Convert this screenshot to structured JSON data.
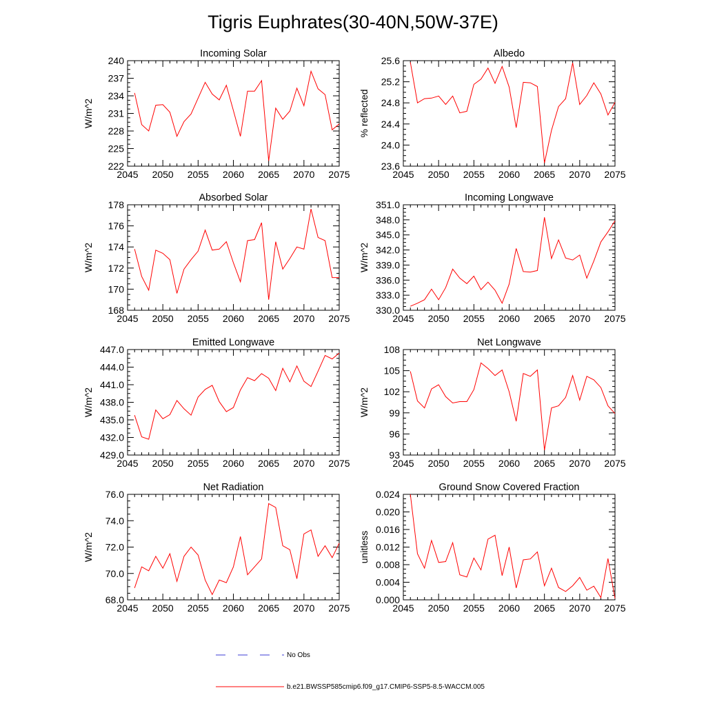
{
  "figure": {
    "title": "Tigris Euphrates(30-40N,50W-37E)"
  },
  "legend": {
    "obs_label": "No Obs",
    "model_label": "b.e21.BWSSP585cmip6.f09_g17.CMIP6-SSP5-8.5-WACCM.005",
    "obs_color": "#3b3bd6",
    "model_color": "#ff0000"
  },
  "chart_data": [
    {
      "type": "line",
      "title": "Incoming Solar",
      "ylabel": "W/m^2",
      "xlim": [
        2045,
        2075
      ],
      "ylim": [
        222,
        240
      ],
      "xticks": [
        2045,
        2050,
        2055,
        2060,
        2065,
        2070,
        2075
      ],
      "yticks": [
        222,
        225,
        228,
        231,
        234,
        237,
        240
      ],
      "ytick_labels": [
        "222",
        "225",
        "228",
        "231",
        "234",
        "237",
        "240"
      ],
      "x": [
        2046,
        2047,
        2048,
        2049,
        2050,
        2051,
        2052,
        2053,
        2054,
        2055,
        2056,
        2057,
        2058,
        2059,
        2060,
        2061,
        2062,
        2063,
        2064,
        2065,
        2066,
        2067,
        2068,
        2069,
        2070,
        2071,
        2072,
        2073,
        2074,
        2075
      ],
      "series": [
        {
          "values": [
            234.5,
            229.1,
            228.0,
            232.4,
            232.5,
            231.2,
            227.1,
            229.6,
            230.9,
            233.6,
            236.3,
            234.3,
            233.3,
            235.8,
            231.5,
            227.1,
            234.8,
            234.8,
            236.6,
            222.9,
            231.9,
            230.0,
            231.4,
            235.3,
            232.3,
            238.2,
            235.2,
            234.2,
            228.2,
            229.2
          ]
        }
      ]
    },
    {
      "type": "line",
      "title": "Albedo",
      "ylabel": "% reflected",
      "xlim": [
        2045,
        2075
      ],
      "ylim": [
        23.6,
        25.6
      ],
      "xticks": [
        2045,
        2050,
        2055,
        2060,
        2065,
        2070,
        2075
      ],
      "yticks": [
        23.6,
        24.0,
        24.4,
        24.8,
        25.2,
        25.6
      ],
      "ytick_labels": [
        "23.6",
        "24.0",
        "24.4",
        "24.8",
        "25.2",
        "25.6"
      ],
      "x": [
        2046,
        2047,
        2048,
        2049,
        2050,
        2051,
        2052,
        2053,
        2054,
        2055,
        2056,
        2057,
        2058,
        2059,
        2060,
        2061,
        2062,
        2063,
        2064,
        2065,
        2066,
        2067,
        2068,
        2069,
        2070,
        2071,
        2072,
        2073,
        2074,
        2075
      ],
      "series": [
        {
          "values": [
            25.57,
            24.8,
            24.88,
            24.89,
            24.93,
            24.77,
            24.93,
            24.61,
            24.64,
            25.15,
            25.25,
            25.46,
            25.17,
            25.49,
            25.1,
            24.33,
            25.19,
            25.18,
            25.11,
            23.66,
            24.28,
            24.73,
            24.88,
            25.56,
            24.77,
            24.94,
            25.18,
            24.97,
            24.57,
            24.81
          ]
        }
      ]
    },
    {
      "type": "line",
      "title": "Absorbed Solar",
      "ylabel": "W/m^2",
      "xlim": [
        2045,
        2075
      ],
      "ylim": [
        168,
        178
      ],
      "xticks": [
        2045,
        2050,
        2055,
        2060,
        2065,
        2070,
        2075
      ],
      "yticks": [
        168,
        170,
        172,
        174,
        176,
        178
      ],
      "ytick_labels": [
        "168",
        "170",
        "172",
        "174",
        "176",
        "178"
      ],
      "x": [
        2046,
        2047,
        2048,
        2049,
        2050,
        2051,
        2052,
        2053,
        2054,
        2055,
        2056,
        2057,
        2058,
        2059,
        2060,
        2061,
        2062,
        2063,
        2064,
        2065,
        2066,
        2067,
        2068,
        2069,
        2070,
        2071,
        2072,
        2073,
        2074,
        2075
      ],
      "series": [
        {
          "values": [
            173.8,
            171.2,
            169.9,
            173.7,
            173.4,
            172.8,
            169.6,
            171.9,
            172.8,
            173.6,
            175.6,
            173.7,
            173.8,
            174.5,
            172.5,
            170.7,
            174.6,
            174.7,
            176.3,
            169.0,
            174.5,
            171.9,
            172.9,
            174.0,
            173.8,
            177.6,
            174.9,
            174.6,
            171.1,
            171.1
          ]
        }
      ]
    },
    {
      "type": "line",
      "title": "Incoming Longwave",
      "ylabel": "W/m^2",
      "xlim": [
        2045,
        2075
      ],
      "ylim": [
        330,
        351
      ],
      "xticks": [
        2045,
        2050,
        2055,
        2060,
        2065,
        2070,
        2075
      ],
      "yticks": [
        330,
        333,
        336,
        339,
        342,
        345,
        348,
        351
      ],
      "ytick_labels": [
        "330.0",
        "333.0",
        "336.0",
        "339.0",
        "342.0",
        "345.0",
        "348.0",
        "351.0"
      ],
      "x": [
        2046,
        2047,
        2048,
        2049,
        2050,
        2051,
        2052,
        2053,
        2054,
        2055,
        2056,
        2057,
        2058,
        2059,
        2060,
        2061,
        2062,
        2063,
        2064,
        2065,
        2066,
        2067,
        2068,
        2069,
        2070,
        2071,
        2072,
        2073,
        2074,
        2075
      ],
      "series": [
        {
          "values": [
            330.8,
            331.4,
            332.1,
            334.2,
            332.1,
            334.5,
            338.2,
            336.4,
            335.3,
            336.8,
            334.1,
            335.6,
            334.0,
            331.4,
            335.2,
            342.3,
            337.7,
            337.6,
            337.9,
            348.5,
            340.3,
            344.0,
            340.4,
            340.0,
            341.0,
            336.4,
            339.8,
            343.6,
            345.6,
            347.8
          ]
        }
      ]
    },
    {
      "type": "line",
      "title": "Emitted Longwave",
      "ylabel": "W/m^2",
      "xlim": [
        2045,
        2075
      ],
      "ylim": [
        429,
        447
      ],
      "xticks": [
        2045,
        2050,
        2055,
        2060,
        2065,
        2070,
        2075
      ],
      "yticks": [
        429,
        432,
        435,
        438,
        441,
        444,
        447
      ],
      "ytick_labels": [
        "429.0",
        "432.0",
        "435.0",
        "438.0",
        "441.0",
        "444.0",
        "447.0"
      ],
      "x": [
        2046,
        2047,
        2048,
        2049,
        2050,
        2051,
        2052,
        2053,
        2054,
        2055,
        2056,
        2057,
        2058,
        2059,
        2060,
        2061,
        2062,
        2063,
        2064,
        2065,
        2066,
        2067,
        2068,
        2069,
        2070,
        2071,
        2072,
        2073,
        2074,
        2075
      ],
      "series": [
        {
          "values": [
            435.8,
            432.1,
            431.7,
            436.7,
            435.2,
            435.9,
            438.3,
            436.9,
            435.8,
            438.9,
            440.2,
            440.9,
            438.1,
            436.4,
            437.1,
            440.1,
            442.2,
            441.7,
            442.9,
            442.1,
            440.0,
            443.8,
            441.5,
            444.2,
            441.6,
            440.7,
            443.3,
            446.0,
            445.4,
            446.4
          ]
        }
      ]
    },
    {
      "type": "line",
      "title": "Net Longwave",
      "ylabel": "W/m^2",
      "xlim": [
        2045,
        2075
      ],
      "ylim": [
        93,
        108
      ],
      "xticks": [
        2045,
        2050,
        2055,
        2060,
        2065,
        2070,
        2075
      ],
      "yticks": [
        93,
        96,
        99,
        102,
        105,
        108
      ],
      "ytick_labels": [
        "93",
        "96",
        "99",
        "102",
        "105",
        "108"
      ],
      "x": [
        2046,
        2047,
        2048,
        2049,
        2050,
        2051,
        2052,
        2053,
        2054,
        2055,
        2056,
        2057,
        2058,
        2059,
        2060,
        2061,
        2062,
        2063,
        2064,
        2065,
        2066,
        2067,
        2068,
        2069,
        2070,
        2071,
        2072,
        2073,
        2074,
        2075
      ],
      "series": [
        {
          "values": [
            104.9,
            100.7,
            99.7,
            102.4,
            103.0,
            101.3,
            100.4,
            100.6,
            100.6,
            102.3,
            106.1,
            105.3,
            104.3,
            105.1,
            102.0,
            97.8,
            104.6,
            104.2,
            105.1,
            93.7,
            99.7,
            100.0,
            101.2,
            104.3,
            100.8,
            104.2,
            103.7,
            102.6,
            100.0,
            98.9
          ]
        }
      ]
    },
    {
      "type": "line",
      "title": "Net Radiation",
      "ylabel": "W/m^2",
      "xlim": [
        2045,
        2075
      ],
      "ylim": [
        68,
        76
      ],
      "xticks": [
        2045,
        2050,
        2055,
        2060,
        2065,
        2070,
        2075
      ],
      "yticks": [
        68,
        70,
        72,
        74,
        76
      ],
      "ytick_labels": [
        "68.0",
        "70.0",
        "72.0",
        "74.0",
        "76.0"
      ],
      "x": [
        2046,
        2047,
        2048,
        2049,
        2050,
        2051,
        2052,
        2053,
        2054,
        2055,
        2056,
        2057,
        2058,
        2059,
        2060,
        2061,
        2062,
        2063,
        2064,
        2065,
        2066,
        2067,
        2068,
        2069,
        2070,
        2071,
        2072,
        2073,
        2074,
        2075
      ],
      "series": [
        {
          "values": [
            68.9,
            70.5,
            70.2,
            71.3,
            70.4,
            71.5,
            69.4,
            71.3,
            72.0,
            71.4,
            69.5,
            68.4,
            69.5,
            69.3,
            70.5,
            72.8,
            69.9,
            70.5,
            71.1,
            75.3,
            75.0,
            72.1,
            71.8,
            69.6,
            73.0,
            73.3,
            71.3,
            72.1,
            71.2,
            72.3
          ]
        }
      ]
    },
    {
      "type": "line",
      "title": "Ground Snow Covered Fraction",
      "ylabel": "unitless",
      "xlim": [
        2045,
        2075
      ],
      "ylim": [
        0,
        0.024
      ],
      "xticks": [
        2045,
        2050,
        2055,
        2060,
        2065,
        2070,
        2075
      ],
      "yticks": [
        0,
        0.004,
        0.008,
        0.012,
        0.016,
        0.02,
        0.024
      ],
      "ytick_labels": [
        "0.000",
        "0.004",
        "0.008",
        "0.012",
        "0.016",
        "0.020",
        "0.024"
      ],
      "x": [
        2046,
        2047,
        2048,
        2049,
        2050,
        2051,
        2052,
        2053,
        2054,
        2055,
        2056,
        2057,
        2058,
        2059,
        2060,
        2061,
        2062,
        2063,
        2064,
        2065,
        2066,
        2067,
        2068,
        2069,
        2070,
        2071,
        2072,
        2073,
        2074,
        2075
      ],
      "series": [
        {
          "values": [
            0.024,
            0.0105,
            0.0072,
            0.0135,
            0.0085,
            0.0087,
            0.013,
            0.0057,
            0.0052,
            0.0095,
            0.0068,
            0.0138,
            0.0147,
            0.0055,
            0.012,
            0.0027,
            0.0091,
            0.0093,
            0.0109,
            0.0032,
            0.0072,
            0.0028,
            0.0019,
            0.0032,
            0.0051,
            0.0022,
            0.0031,
            0.0005,
            0.0094,
            0.0003
          ]
        }
      ]
    }
  ]
}
